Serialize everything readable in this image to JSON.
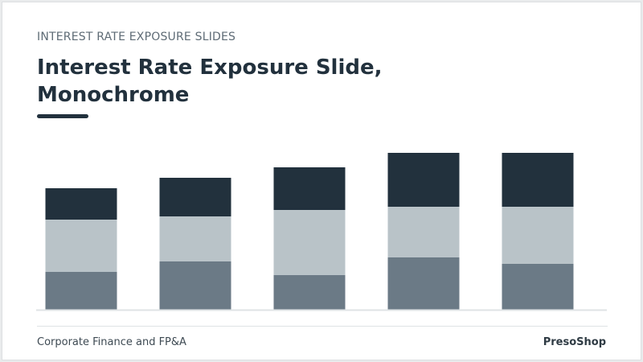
{
  "header": {
    "eyebrow": "INTEREST RATE EXPOSURE SLIDES",
    "title": "Interest Rate Exposure Slide, Monochrome"
  },
  "footer": {
    "left": "Corporate Finance and FP&A",
    "right": "PresoShop"
  },
  "chart_data": {
    "type": "stacked_bar",
    "ylim": [
      0,
      200
    ],
    "series": [
      {
        "color": "#6b7a86",
        "values": [
          47,
          60,
          43,
          65,
          57
        ]
      },
      {
        "color": "#b9c3c8",
        "values": [
          65,
          56,
          81,
          63,
          71
        ]
      },
      {
        "color": "#22313d",
        "values": [
          39,
          48,
          53,
          67,
          67
        ]
      }
    ]
  }
}
